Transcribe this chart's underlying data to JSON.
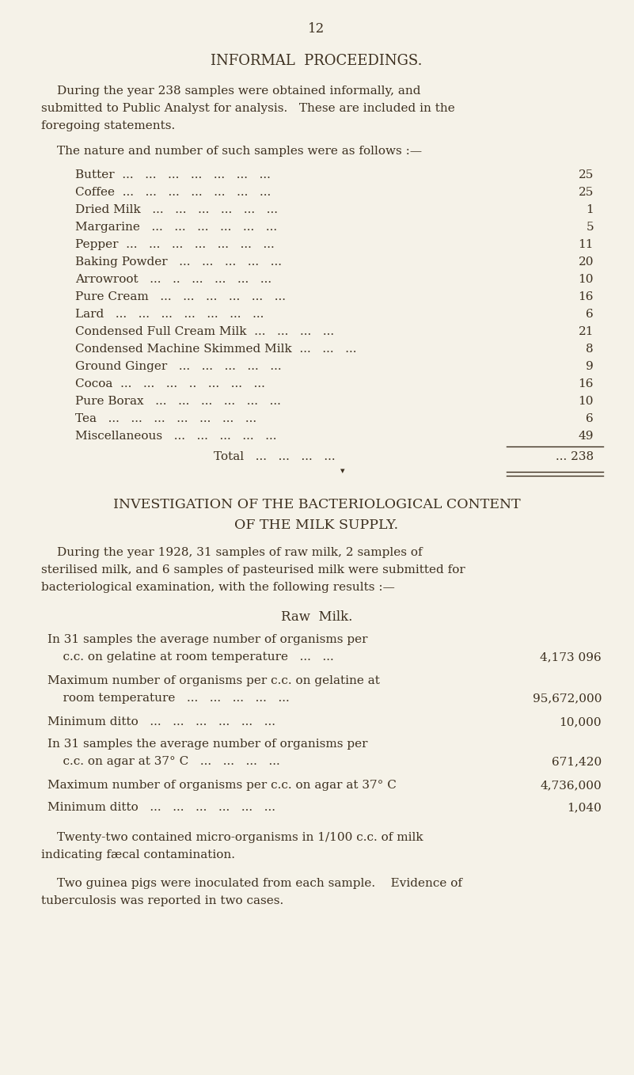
{
  "page_number": "12",
  "bg_color": "#f5f2e8",
  "text_color": "#3d3020",
  "section1_title": "INFORMAL  PROCEEDINGS.",
  "para1_line1": "During the year 238 samples were obtained informally, and",
  "para1_line2": "submitted to Public Analyst for analysis.   These are included in the",
  "para1_line3": "foregoing statements.",
  "intro_line": "The nature and number of such samples were as follows :—",
  "items": [
    [
      "Butter  ...   ...   ...   ...   ...   ...   ...",
      "25"
    ],
    [
      "Coffee  ...   ...   ...   ...   ...   ...   ...",
      "25"
    ],
    [
      "Dried Milk   ...   ...   ...   ...   ...   ...",
      "1"
    ],
    [
      "Margarine   ...   ...   ...   ...   ...   ...",
      "5"
    ],
    [
      "Pepper  ...   ...   ...   ...   ...   ...   ...",
      "11"
    ],
    [
      "Baking Powder   ...   ...   ...   ...   ...",
      "20"
    ],
    [
      "Arrowroot   ...   ..   ...   ...   ...   ...",
      "10"
    ],
    [
      "Pure Cream   ...   ...   ...   ...   ...   ...",
      "16"
    ],
    [
      "Lard   ...   ...   ...   ...   ...   ...   ...",
      "6"
    ],
    [
      "Condensed Full Cream Milk  ...   ...   ...   ...",
      "21"
    ],
    [
      "Condensed Machine Skimmed Milk  ...   ...   ...",
      "8"
    ],
    [
      "Ground Ginger   ...   ...   ...   ...   ...",
      "9"
    ],
    [
      "Cocoa  ...   ...   ...   ..   ...   ...   ...",
      "16"
    ],
    [
      "Pure Borax   ...   ...   ...   ...   ...   ...",
      "10"
    ],
    [
      "Tea   ...   ...   ...   ...   ...   ...   ...",
      "6"
    ],
    [
      "Miscellaneous   ...   ...   ...   ...   ...",
      "49"
    ]
  ],
  "total_label": "Total   ...   ...   ...   ...",
  "total_value": "... 238",
  "section2_title1": "INVESTIGATION OF THE BACTERIOLOGICAL CONTENT",
  "section2_title2": "OF THE MILK SUPPLY.",
  "para2_line1": "During the year 1928, 31 samples of raw milk, 2 samples of",
  "para2_line2": "sterilised milk, and 6 samples of pasteurised milk were submitted for",
  "para2_line3": "bacteriological examination, with the following results :—",
  "raw_milk_title": "Raw  Milk.",
  "rm_items": [
    {
      "line1": "In 31 samples the average number of organisms per",
      "line2": "    c.c. on gelatine at room temperature   ...   ...",
      "value": "4,173 096",
      "two_lines": true
    },
    {
      "line1": "Maximum number of organisms per c.c. on gelatine at",
      "line2": "    room temperature   ...   ...   ...   ...   ...",
      "value": "95,672,000",
      "two_lines": true
    },
    {
      "line1": "Minimum ditto   ...   ...   ...   ...   ...   ...",
      "value": "10,000",
      "two_lines": false
    },
    {
      "line1": "In 31 samples the average number of organisms per",
      "line2": "    c.c. on agar at 37° C   ...   ...   ...   ...",
      "value": "671,420",
      "two_lines": true
    },
    {
      "line1": "Maximum number of organisms per c.c. on agar at 37° C",
      "value": "4,736,000",
      "two_lines": false
    },
    {
      "line1": "Minimum ditto   ...   ...   ...   ...   ...   ...",
      "value": "1,040",
      "two_lines": false
    }
  ],
  "para3_line1": "Twenty-two contained micro-organisms in 1/100 c.c. of milk",
  "para3_line2": "indicating fæcal contamination.",
  "para4_line1": "Two guinea pigs were inoculated from each sample.    Evidence of",
  "para4_line2": "tuberculosis was reported in two cases."
}
